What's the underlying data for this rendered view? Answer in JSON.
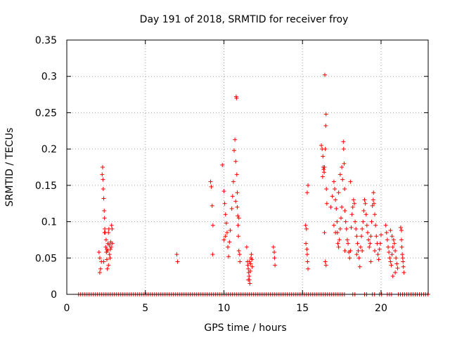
{
  "chart_data": {
    "type": "scatter",
    "title": "Day 191 of 2018, SRMTID for receiver froy",
    "xlabel": "GPS time / hours",
    "ylabel": "SRMTID / TECUs",
    "xlim": [
      0,
      23
    ],
    "ylim": [
      0,
      0.35
    ],
    "x_ticks": [
      0,
      5,
      10,
      15,
      20
    ],
    "x_tick_labels": [
      "0",
      "5",
      "10",
      "15",
      "20"
    ],
    "y_ticks": [
      0,
      0.05,
      0.1,
      0.15,
      0.2,
      0.25,
      0.3,
      0.35
    ],
    "y_tick_labels": [
      "0",
      "0.05",
      "0.1",
      "0.15",
      "0.2",
      "0.25",
      "0.3",
      "0.35"
    ],
    "grid": true,
    "marker": "+",
    "color": "#ff0000",
    "series": [
      {
        "name": "SRMTID",
        "zero_segments": [
          [
            0.75,
            17.7
          ],
          [
            18.2,
            18.45
          ],
          [
            18.95,
            19.15
          ],
          [
            19.45,
            19.65
          ],
          [
            19.9,
            20.15
          ],
          [
            20.4,
            20.75
          ],
          [
            21.1,
            23.0
          ]
        ],
        "points": [
          [
            2.05,
            0.058
          ],
          [
            2.1,
            0.05
          ],
          [
            2.15,
            0.035
          ],
          [
            2.1,
            0.03
          ],
          [
            2.2,
            0.045
          ],
          [
            2.25,
            0.165
          ],
          [
            2.28,
            0.175
          ],
          [
            2.3,
            0.158
          ],
          [
            2.32,
            0.145
          ],
          [
            2.35,
            0.132
          ],
          [
            2.38,
            0.115
          ],
          [
            2.4,
            0.105
          ],
          [
            2.42,
            0.09
          ],
          [
            2.45,
            0.085
          ],
          [
            2.48,
            0.065
          ],
          [
            2.5,
            0.075
          ],
          [
            2.52,
            0.058
          ],
          [
            2.55,
            0.048
          ],
          [
            2.58,
            0.035
          ],
          [
            2.6,
            0.06
          ],
          [
            2.62,
            0.07
          ],
          [
            2.65,
            0.085
          ],
          [
            2.68,
            0.09
          ],
          [
            2.7,
            0.068
          ],
          [
            2.72,
            0.055
          ],
          [
            2.75,
            0.05
          ],
          [
            2.78,
            0.062
          ],
          [
            2.8,
            0.072
          ],
          [
            2.82,
            0.065
          ],
          [
            2.85,
            0.095
          ],
          [
            2.88,
            0.09
          ],
          [
            2.9,
            0.07
          ],
          [
            2.35,
            0.045
          ],
          [
            2.4,
            0.085
          ],
          [
            2.55,
            0.062
          ],
          [
            2.65,
            0.04
          ],
          [
            7.0,
            0.055
          ],
          [
            7.05,
            0.045
          ],
          [
            9.15,
            0.155
          ],
          [
            9.2,
            0.148
          ],
          [
            9.25,
            0.122
          ],
          [
            9.3,
            0.095
          ],
          [
            9.28,
            0.055
          ],
          [
            9.9,
            0.178
          ],
          [
            10.0,
            0.142
          ],
          [
            10.05,
            0.125
          ],
          [
            10.1,
            0.11
          ],
          [
            10.15,
            0.098
          ],
          [
            10.2,
            0.085
          ],
          [
            10.25,
            0.065
          ],
          [
            10.3,
            0.052
          ],
          [
            10.35,
            0.072
          ],
          [
            10.4,
            0.088
          ],
          [
            10.5,
            0.118
          ],
          [
            10.55,
            0.135
          ],
          [
            10.6,
            0.155
          ],
          [
            10.65,
            0.198
          ],
          [
            10.7,
            0.213
          ],
          [
            10.75,
            0.183
          ],
          [
            10.78,
            0.272
          ],
          [
            10.8,
            0.27
          ],
          [
            10.82,
            0.165
          ],
          [
            10.85,
            0.12
          ],
          [
            10.88,
            0.108
          ],
          [
            10.9,
            0.095
          ],
          [
            10.92,
            0.08
          ],
          [
            10.95,
            0.06
          ],
          [
            11.0,
            0.055
          ],
          [
            11.02,
            0.045
          ],
          [
            10.85,
            0.14
          ],
          [
            10.75,
            0.128
          ],
          [
            10.95,
            0.105
          ],
          [
            10.0,
            0.075
          ],
          [
            10.1,
            0.08
          ],
          [
            11.45,
            0.065
          ],
          [
            11.5,
            0.045
          ],
          [
            11.52,
            0.04
          ],
          [
            11.55,
            0.035
          ],
          [
            11.58,
            0.03
          ],
          [
            11.6,
            0.025
          ],
          [
            11.62,
            0.02
          ],
          [
            11.65,
            0.015
          ],
          [
            11.68,
            0.032
          ],
          [
            11.7,
            0.042
          ],
          [
            11.72,
            0.05
          ],
          [
            11.75,
            0.055
          ],
          [
            11.78,
            0.048
          ],
          [
            11.8,
            0.038
          ],
          [
            11.55,
            0.02
          ],
          [
            11.62,
            0.045
          ],
          [
            13.15,
            0.065
          ],
          [
            13.2,
            0.058
          ],
          [
            13.22,
            0.05
          ],
          [
            13.25,
            0.04
          ],
          [
            15.2,
            0.095
          ],
          [
            15.25,
            0.09
          ],
          [
            15.22,
            0.07
          ],
          [
            15.28,
            0.062
          ],
          [
            15.3,
            0.055
          ],
          [
            15.32,
            0.045
          ],
          [
            15.35,
            0.035
          ],
          [
            15.3,
            0.14
          ],
          [
            15.35,
            0.15
          ],
          [
            16.2,
            0.205
          ],
          [
            16.25,
            0.2
          ],
          [
            16.3,
            0.19
          ],
          [
            16.32,
            0.175
          ],
          [
            16.35,
            0.172
          ],
          [
            16.38,
            0.168
          ],
          [
            16.28,
            0.162
          ],
          [
            16.4,
            0.175
          ],
          [
            16.45,
            0.2
          ],
          [
            16.48,
            0.232
          ],
          [
            16.5,
            0.248
          ],
          [
            16.42,
            0.302
          ],
          [
            16.52,
            0.145
          ],
          [
            16.55,
            0.125
          ],
          [
            16.4,
            0.085
          ],
          [
            16.45,
            0.045
          ],
          [
            16.5,
            0.04
          ],
          [
            16.8,
            0.12
          ],
          [
            16.9,
            0.135
          ],
          [
            17.0,
            0.155
          ],
          [
            17.05,
            0.145
          ],
          [
            17.1,
            0.13
          ],
          [
            17.15,
            0.118
          ],
          [
            17.2,
            0.1
          ],
          [
            17.22,
            0.085
          ],
          [
            17.25,
            0.07
          ],
          [
            17.3,
            0.065
          ],
          [
            17.35,
            0.075
          ],
          [
            17.4,
            0.09
          ],
          [
            17.45,
            0.105
          ],
          [
            17.5,
            0.12
          ],
          [
            17.55,
            0.158
          ],
          [
            17.6,
            0.21
          ],
          [
            17.62,
            0.2
          ],
          [
            17.65,
            0.18
          ],
          [
            17.68,
            0.145
          ],
          [
            17.7,
            0.115
          ],
          [
            17.75,
            0.1
          ],
          [
            17.8,
            0.09
          ],
          [
            17.85,
            0.075
          ],
          [
            17.9,
            0.07
          ],
          [
            17.95,
            0.058
          ],
          [
            18.0,
            0.05
          ],
          [
            18.05,
            0.06
          ],
          [
            18.1,
            0.092
          ],
          [
            18.15,
            0.11
          ],
          [
            18.2,
            0.12
          ],
          [
            18.25,
            0.13
          ],
          [
            18.3,
            0.125
          ],
          [
            18.35,
            0.1
          ],
          [
            18.4,
            0.09
          ],
          [
            18.45,
            0.08
          ],
          [
            18.5,
            0.07
          ],
          [
            18.55,
            0.06
          ],
          [
            18.6,
            0.05
          ],
          [
            18.65,
            0.038
          ],
          [
            18.7,
            0.065
          ],
          [
            18.75,
            0.08
          ],
          [
            18.8,
            0.09
          ],
          [
            18.85,
            0.1
          ],
          [
            18.9,
            0.115
          ],
          [
            18.95,
            0.13
          ],
          [
            19.0,
            0.125
          ],
          [
            19.05,
            0.11
          ],
          [
            19.1,
            0.095
          ],
          [
            19.15,
            0.085
          ],
          [
            19.2,
            0.075
          ],
          [
            19.25,
            0.065
          ],
          [
            19.3,
            0.07
          ],
          [
            19.35,
            0.08
          ],
          [
            19.4,
            0.1
          ],
          [
            19.45,
            0.122
          ],
          [
            19.5,
            0.13
          ],
          [
            19.52,
            0.14
          ],
          [
            19.55,
            0.125
          ],
          [
            19.6,
            0.11
          ],
          [
            19.65,
            0.095
          ],
          [
            19.7,
            0.08
          ],
          [
            19.75,
            0.07
          ],
          [
            19.8,
            0.055
          ],
          [
            19.85,
            0.048
          ],
          [
            19.9,
            0.062
          ],
          [
            19.95,
            0.07
          ],
          [
            20.0,
            0.082
          ],
          [
            17.3,
            0.14
          ],
          [
            17.4,
            0.165
          ],
          [
            17.5,
            0.175
          ],
          [
            18.05,
            0.155
          ],
          [
            18.45,
            0.055
          ],
          [
            18.8,
            0.06
          ],
          [
            19.35,
            0.045
          ],
          [
            19.6,
            0.06
          ],
          [
            17.0,
            0.095
          ],
          [
            17.1,
            0.085
          ],
          [
            17.7,
            0.06
          ],
          [
            20.3,
            0.095
          ],
          [
            20.35,
            0.085
          ],
          [
            20.4,
            0.075
          ],
          [
            20.45,
            0.065
          ],
          [
            20.5,
            0.058
          ],
          [
            20.55,
            0.05
          ],
          [
            20.6,
            0.045
          ],
          [
            20.65,
            0.04
          ],
          [
            20.7,
            0.055
          ],
          [
            20.75,
            0.065
          ],
          [
            20.8,
            0.075
          ],
          [
            20.85,
            0.07
          ],
          [
            20.9,
            0.06
          ],
          [
            20.95,
            0.05
          ],
          [
            21.0,
            0.042
          ],
          [
            21.05,
            0.036
          ],
          [
            20.6,
            0.088
          ],
          [
            20.7,
            0.08
          ],
          [
            20.9,
            0.03
          ],
          [
            20.75,
            0.025
          ],
          [
            21.25,
            0.092
          ],
          [
            21.3,
            0.075
          ],
          [
            21.32,
            0.065
          ],
          [
            21.35,
            0.055
          ],
          [
            21.38,
            0.05
          ],
          [
            21.4,
            0.045
          ],
          [
            21.42,
            0.038
          ],
          [
            21.45,
            0.03
          ],
          [
            21.3,
            0.088
          ]
        ]
      }
    ]
  }
}
